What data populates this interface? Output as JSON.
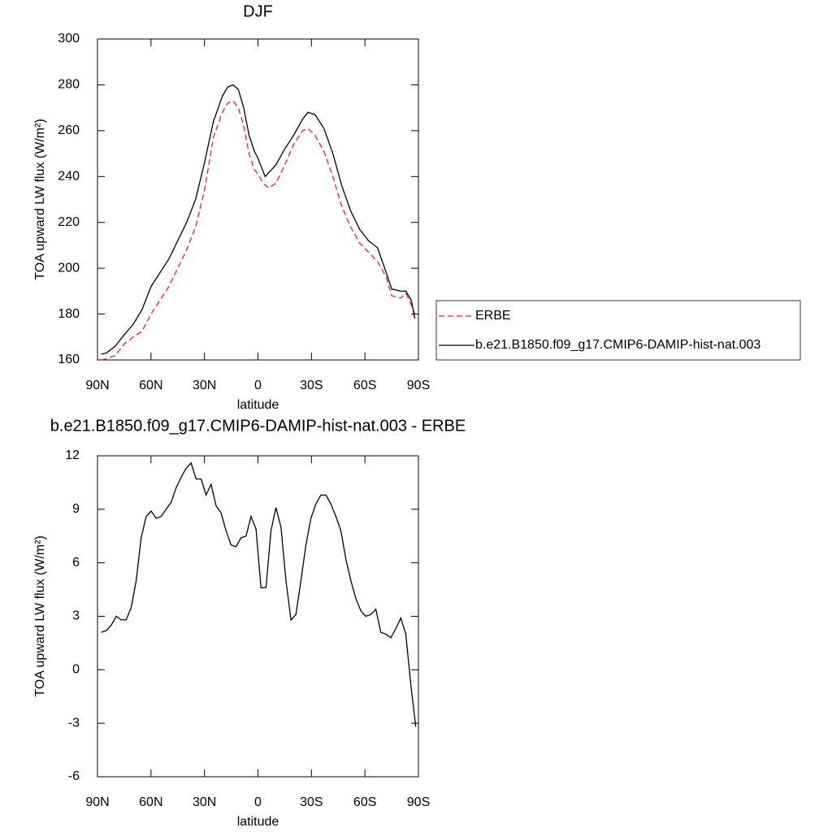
{
  "chart_data": [
    {
      "type": "line",
      "title": "DJF",
      "xlabel": "latitude",
      "ylabel": "TOA upward LW flux (W/m²)",
      "xlim": [
        90,
        -90
      ],
      "ylim": [
        160,
        300
      ],
      "xticks": [
        {
          "value": 90,
          "label": "90N"
        },
        {
          "value": 60,
          "label": "60N"
        },
        {
          "value": 30,
          "label": "30N"
        },
        0,
        {
          "value": -30,
          "label": "30S"
        },
        {
          "value": -60,
          "label": "60S"
        },
        {
          "value": -90,
          "label": "90S"
        }
      ],
      "yticks": [
        160,
        180,
        200,
        220,
        240,
        260,
        280,
        300
      ],
      "legend": "right",
      "series": [
        {
          "name": "ERBE",
          "color": "#e8231f",
          "line_style": "dashed",
          "x": [
            88,
            85,
            80,
            75,
            70,
            65,
            60,
            55,
            50,
            45,
            40,
            35,
            30,
            25,
            20,
            17,
            14,
            11,
            8,
            5,
            2,
            0,
            -3,
            -6,
            -10,
            -15,
            -20,
            -25,
            -28,
            -32,
            -37,
            -42,
            -47,
            -52,
            -57,
            -62,
            -67,
            -72,
            -75,
            -80,
            -83,
            -86,
            -88
          ],
          "values": [
            160,
            160.5,
            162,
            167,
            170,
            172.5,
            180,
            186,
            192,
            200,
            208,
            218,
            234,
            257,
            268,
            272,
            273,
            270,
            262,
            250,
            243,
            241,
            237,
            235,
            237,
            245,
            254,
            260,
            261,
            258,
            251,
            240,
            227,
            218,
            211,
            207,
            203,
            196,
            188,
            187,
            189,
            184,
            180
          ]
        },
        {
          "name": "b.e21.B1850.f09_g17.CMIP6-DAMIP-hist-nat.003",
          "color": "#000000",
          "line_style": "solid",
          "x": [
            88,
            85,
            80,
            75,
            70,
            65,
            60,
            55,
            50,
            45,
            40,
            35,
            30,
            25,
            20,
            17,
            14,
            11,
            8,
            5,
            2,
            0,
            -4,
            -10,
            -15,
            -20,
            -25,
            -28,
            -32,
            -37,
            -42,
            -47,
            -52,
            -57,
            -62,
            -67,
            -72,
            -75,
            -80,
            -83,
            -86,
            -88
          ],
          "values": [
            162.5,
            163,
            166,
            171,
            175.5,
            182,
            192,
            198,
            204,
            212,
            220,
            230,
            246,
            264,
            275,
            279,
            280,
            278,
            270,
            258,
            251,
            248,
            240,
            245,
            252,
            258,
            265,
            268,
            267,
            261,
            250,
            236,
            225,
            217,
            212,
            209,
            198,
            191,
            190,
            190,
            186,
            178
          ]
        }
      ]
    },
    {
      "type": "line",
      "title": "b.e21.B1850.f09_g17.CMIP6-DAMIP-hist-nat.003 - ERBE",
      "xlabel": "latitude",
      "ylabel": "TOA upward LW flux (W/m²)",
      "xlim": [
        90,
        -90
      ],
      "ylim": [
        -6,
        12
      ],
      "xticks": [
        {
          "value": 90,
          "label": "90N"
        },
        {
          "value": 60,
          "label": "60N"
        },
        {
          "value": 30,
          "label": "30N"
        },
        0,
        {
          "value": -30,
          "label": "30S"
        },
        {
          "value": -60,
          "label": "60S"
        },
        {
          "value": -90,
          "label": "90S"
        }
      ],
      "yticks": [
        -6,
        -3,
        0,
        3,
        6,
        9,
        12
      ],
      "series": [
        {
          "color": "#000000",
          "line_style": "solid",
          "x": [
            87.9,
            85.1,
            82.3,
            79.5,
            76.7,
            73.9,
            71.1,
            68.3,
            65.5,
            62.7,
            59.9,
            57.1,
            54.3,
            51.5,
            48.7,
            45.9,
            43.1,
            40.3,
            37.5,
            34.7,
            31.9,
            29.1,
            26.3,
            23.5,
            20.7,
            17.9,
            15.1,
            12.3,
            9.5,
            6.7,
            3.9,
            1.1,
            -1.7,
            -4.5,
            -7.3,
            -10.1,
            -12.9,
            -15.7,
            -18.5,
            -21.3,
            -24.1,
            -26.9,
            -29.7,
            -32.5,
            -35.3,
            -38.1,
            -40.9,
            -43.7,
            -46.5,
            -49.3,
            -52.1,
            -54.9,
            -57.7,
            -60.5,
            -63.3,
            -66.1,
            -68.9,
            -71.7,
            -74.5,
            -77.3,
            -80.1,
            -82.9,
            -85.7,
            -88.5
          ],
          "values": [
            2.1,
            2.2,
            2.5,
            3.0,
            2.8,
            2.8,
            3.5,
            5.0,
            7.4,
            8.6,
            8.9,
            8.5,
            8.6,
            9.0,
            9.4,
            10.2,
            10.8,
            11.3,
            11.6,
            10.7,
            10.7,
            9.8,
            10.4,
            9.2,
            8.8,
            7.8,
            7.0,
            6.9,
            7.4,
            7.5,
            8.6,
            7.9,
            4.6,
            4.6,
            7.8,
            9.1,
            8.0,
            5.0,
            2.8,
            3.1,
            5.0,
            7.0,
            8.5,
            9.3,
            9.8,
            9.8,
            9.3,
            8.6,
            7.8,
            6.2,
            5.0,
            4.0,
            3.3,
            3.0,
            3.1,
            3.4,
            2.1,
            2.0,
            1.8,
            2.3,
            2.9,
            2.0,
            -0.8,
            -3.2
          ]
        }
      ]
    }
  ]
}
